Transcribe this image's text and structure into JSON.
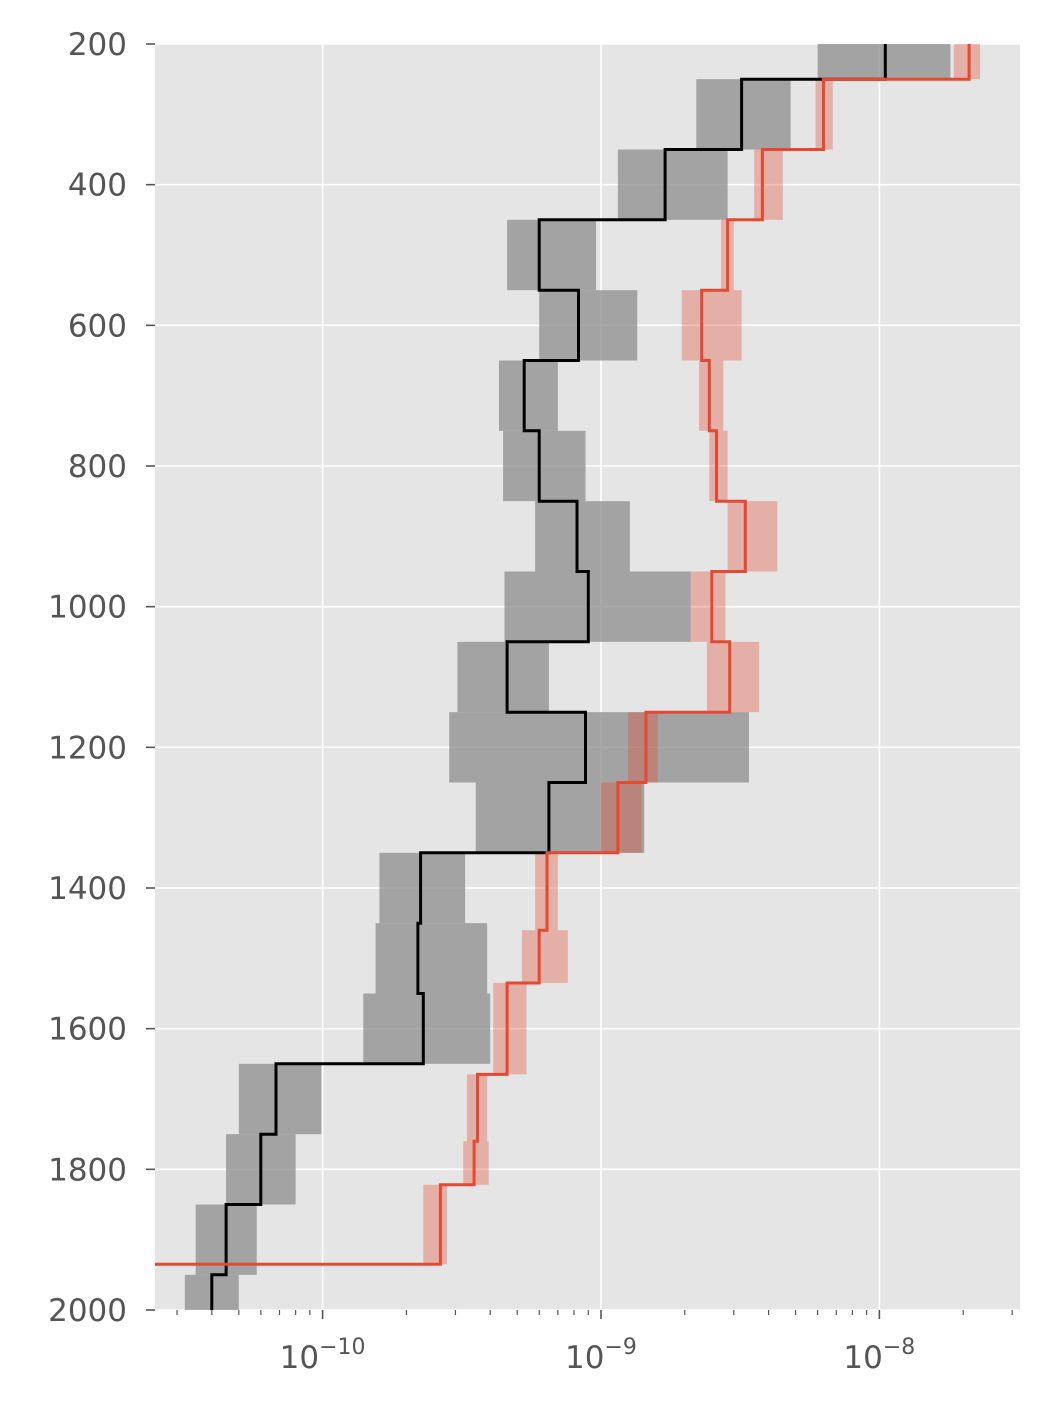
{
  "chart_data": {
    "type": "line",
    "style": "ggplot",
    "orientation": "depth profile (y axis inverted, step lines)",
    "title": "",
    "xlabel": "",
    "ylabel": "",
    "x_scale": "log",
    "xlim": [
      2.5e-11,
      3.2e-08
    ],
    "ylim": [
      2000,
      200
    ],
    "y_inverted": true,
    "grid": true,
    "legend": "none",
    "yticks": [
      200,
      400,
      600,
      800,
      1000,
      1200,
      1400,
      1600,
      1800,
      2000
    ],
    "ytick_labels": [
      "200",
      "400",
      "600",
      "800",
      "1000",
      "1200",
      "1400",
      "1600",
      "1800",
      "2000"
    ],
    "xticks": [
      1e-10,
      1e-09,
      1e-08
    ],
    "xtick_labels": [
      {
        "base": "10",
        "exp": "−10"
      },
      {
        "base": "10",
        "exp": "−9"
      },
      {
        "base": "10",
        "exp": "−8"
      }
    ],
    "colors": {
      "background": "#E5E5E5",
      "grid": "#FFFFFF",
      "tick_text": "#555555",
      "black_series": "#000000",
      "black_band": "#8C8C8C",
      "red_series": "#E24A33",
      "red_band": "#E8A49A"
    },
    "series": [
      {
        "color": "#000000",
        "band_color": "#8C8C8C",
        "band_opacity": 0.75,
        "steps": [
          {
            "y0": 200,
            "y1": 250,
            "x": 1.05e-08,
            "lo": 6e-09,
            "hi": 1.8e-08
          },
          {
            "y0": 250,
            "y1": 350,
            "x": 3.2e-09,
            "lo": 2.2e-09,
            "hi": 4.8e-09
          },
          {
            "y0": 350,
            "y1": 450,
            "x": 1.7e-09,
            "lo": 1.15e-09,
            "hi": 2.85e-09
          },
          {
            "y0": 450,
            "y1": 550,
            "x": 6e-10,
            "lo": 4.6e-10,
            "hi": 9.6e-10
          },
          {
            "y0": 550,
            "y1": 650,
            "x": 8.3e-10,
            "lo": 6e-10,
            "hi": 1.35e-09
          },
          {
            "y0": 650,
            "y1": 750,
            "x": 5.3e-10,
            "lo": 4.3e-10,
            "hi": 7e-10
          },
          {
            "y0": 750,
            "y1": 850,
            "x": 6e-10,
            "lo": 4.45e-10,
            "hi": 8.8e-10
          },
          {
            "y0": 850,
            "y1": 950,
            "x": 8.2e-10,
            "lo": 5.8e-10,
            "hi": 1.27e-09
          },
          {
            "y0": 950,
            "y1": 1050,
            "x": 9e-10,
            "lo": 4.5e-10,
            "hi": 2.1e-09
          },
          {
            "y0": 1050,
            "y1": 1150,
            "x": 4.6e-10,
            "lo": 3.05e-10,
            "hi": 6.5e-10
          },
          {
            "y0": 1150,
            "y1": 1250,
            "x": 8.8e-10,
            "lo": 2.85e-10,
            "hi": 3.4e-09
          },
          {
            "y0": 1250,
            "y1": 1350,
            "x": 6.5e-10,
            "lo": 3.55e-10,
            "hi": 1.43e-09
          },
          {
            "y0": 1350,
            "y1": 1450,
            "x": 2.25e-10,
            "lo": 1.6e-10,
            "hi": 3.25e-10
          },
          {
            "y0": 1450,
            "y1": 1550,
            "x": 2.2e-10,
            "lo": 1.55e-10,
            "hi": 3.9e-10
          },
          {
            "y0": 1550,
            "y1": 1650,
            "x": 2.3e-10,
            "lo": 1.4e-10,
            "hi": 4e-10
          },
          {
            "y0": 1650,
            "y1": 1750,
            "x": 6.8e-11,
            "lo": 5e-11,
            "hi": 9.9e-11
          },
          {
            "y0": 1750,
            "y1": 1850,
            "x": 6e-11,
            "lo": 4.5e-11,
            "hi": 8e-11
          },
          {
            "y0": 1850,
            "y1": 1950,
            "x": 4.5e-11,
            "lo": 3.5e-11,
            "hi": 5.8e-11
          },
          {
            "y0": 1950,
            "y1": 2000,
            "x": 4e-11,
            "lo": 3.2e-11,
            "hi": 5e-11
          }
        ]
      },
      {
        "color": "#E24A33",
        "band_color": "#E24A33",
        "band_opacity": 0.35,
        "steps": [
          {
            "y0": 200,
            "y1": 250,
            "x": 2.1e-08,
            "lo": 1.85e-08,
            "hi": 2.3e-08
          },
          {
            "y0": 250,
            "y1": 350,
            "x": 6.3e-09,
            "lo": 5.9e-09,
            "hi": 6.8e-09
          },
          {
            "y0": 350,
            "y1": 450,
            "x": 3.8e-09,
            "lo": 3.55e-09,
            "hi": 4.5e-09
          },
          {
            "y0": 450,
            "y1": 550,
            "x": 2.85e-09,
            "lo": 2.7e-09,
            "hi": 3e-09
          },
          {
            "y0": 550,
            "y1": 650,
            "x": 2.3e-09,
            "lo": 1.95e-09,
            "hi": 3.2e-09
          },
          {
            "y0": 650,
            "y1": 750,
            "x": 2.45e-09,
            "lo": 2.25e-09,
            "hi": 2.75e-09
          },
          {
            "y0": 750,
            "y1": 850,
            "x": 2.6e-09,
            "lo": 2.45e-09,
            "hi": 2.85e-09
          },
          {
            "y0": 850,
            "y1": 950,
            "x": 3.3e-09,
            "lo": 2.85e-09,
            "hi": 4.3e-09
          },
          {
            "y0": 950,
            "y1": 1050,
            "x": 2.5e-09,
            "lo": 2.1e-09,
            "hi": 2.8e-09
          },
          {
            "y0": 1050,
            "y1": 1150,
            "x": 2.9e-09,
            "lo": 2.4e-09,
            "hi": 3.7e-09
          },
          {
            "y0": 1150,
            "y1": 1250,
            "x": 1.45e-09,
            "lo": 1.25e-09,
            "hi": 1.6e-09
          },
          {
            "y0": 1250,
            "y1": 1350,
            "x": 1.15e-09,
            "lo": 1e-09,
            "hi": 1.4e-09
          },
          {
            "y0": 1350,
            "y1": 1460,
            "x": 6.4e-10,
            "lo": 5.8e-10,
            "hi": 7e-10
          },
          {
            "y0": 1460,
            "y1": 1535,
            "x": 6e-10,
            "lo": 5.2e-10,
            "hi": 7.6e-10
          },
          {
            "y0": 1535,
            "y1": 1665,
            "x": 4.6e-10,
            "lo": 4.1e-10,
            "hi": 5.4e-10
          },
          {
            "y0": 1665,
            "y1": 1760,
            "x": 3.6e-10,
            "lo": 3.3e-10,
            "hi": 3.9e-10
          },
          {
            "y0": 1760,
            "y1": 1822,
            "x": 3.5e-10,
            "lo": 3.2e-10,
            "hi": 3.95e-10
          },
          {
            "y0": 1822,
            "y1": 1935,
            "x": 2.65e-10,
            "lo": 2.3e-10,
            "hi": 2.8e-10
          },
          {
            "y0": 1935,
            "y1": 1935,
            "x": 2.5e-11,
            "lo": 2.5e-11,
            "hi": 2.5e-11
          }
        ]
      }
    ]
  }
}
